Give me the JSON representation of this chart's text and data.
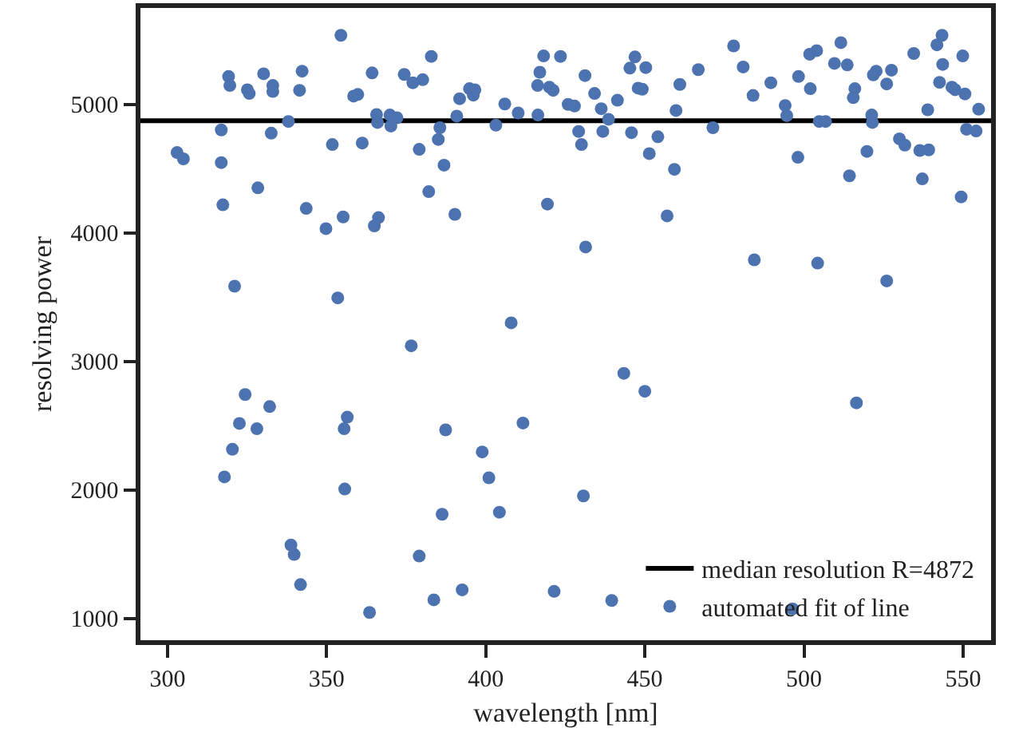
{
  "chart_data": {
    "type": "scatter",
    "xlabel": "wavelength [nm]",
    "ylabel": "resolving power",
    "x": [
      354.5,
      319.2,
      319.6,
      330.2,
      325.1,
      325.7,
      333.1,
      333.1,
      342.3,
      341.5,
      364.3,
      358.5,
      359.8,
      374.4,
      377.1,
      365.7,
      366,
      369.9,
      372.1,
      370.2,
      338,
      316.9,
      332.6,
      303,
      305,
      316.9,
      351.8,
      361.2,
      379.1,
      328.4,
      317.4,
      343.6,
      355.2,
      349.8,
      366.3,
      365,
      321.1,
      353.5,
      382.9,
      380.2,
      394.9,
      396.1,
      396.6,
      391.8,
      390.9,
      385.6,
      385.1,
      386.9,
      382.1,
      390.3,
      403.2,
      406,
      410.2,
      418.2,
      417,
      416.3,
      420,
      421.2,
      416.4,
      423.5,
      431.2,
      425.9,
      427.9,
      434.2,
      436.3,
      438.6,
      441.4,
      429.2,
      430.1,
      436.8,
      446.9,
      445.3,
      450.3,
      447.9,
      449.2,
      445.8,
      454.1,
      451.4,
      459.3,
      461,
      459.8,
      466.8,
      419.4,
      457,
      431.4,
      408,
      477.9,
      480.9,
      484,
      489.6,
      494.1,
      494.6,
      498.3,
      502,
      501.8,
      504,
      509.6,
      513.6,
      511.6,
      504.8,
      506.8,
      516,
      515.5,
      521.3,
      521.5,
      522.7,
      521.8,
      527.5,
      526,
      534.5,
      541.8,
      543.4,
      543.6,
      542.6,
      546.5,
      547.5,
      550.6,
      549.9,
      538.9,
      554.9,
      551.1,
      554.1,
      471.4,
      498.1,
      514.3,
      519.8,
      530,
      531.7,
      536.4,
      539.2,
      537.2,
      549.4,
      484.4,
      504.3,
      526,
      376.6,
      324.4,
      332.1,
      322.6,
      328.1,
      356.5,
      355.5,
      320.4,
      317.9,
      355.7,
      338.8,
      339.8,
      341.8,
      363.5,
      379.1,
      443.4,
      450,
      387.4,
      411.7,
      398.9,
      401,
      430.7,
      386.3,
      404.3,
      383.7,
      392.6,
      421.5,
      439.6,
      516.5,
      496.4
    ],
    "series": [
      {
        "name": "automated fit of line",
        "color": "#4c72b0",
        "values": [
          5537,
          5217,
          5147,
          5238,
          5114,
          5085,
          5147,
          5101,
          5258,
          5109,
          5245,
          5064,
          5077,
          5233,
          5168,
          4921,
          4859,
          4917,
          4896,
          4831,
          4867,
          4801,
          4776,
          4625,
          4576,
          4547,
          4687,
          4699,
          4650,
          4350,
          4218,
          4190,
          4124,
          4033,
          4119,
          4054,
          3585,
          3494,
          5373,
          5192,
          5122,
          5072,
          5114,
          5044,
          4909,
          4818,
          4727,
          4527,
          4321,
          4144,
          4838,
          5003,
          4933,
          5377,
          5250,
          5147,
          5134,
          5109,
          4917,
          5373,
          5224,
          5000,
          4987,
          5085,
          4966,
          4884,
          5032,
          4789,
          4687,
          4789,
          5369,
          5282,
          5286,
          5126,
          5118,
          4780,
          4748,
          4617,
          4494,
          5155,
          4952,
          5270,
          4224,
          4132,
          3890,
          3300,
          5455,
          5291,
          5069,
          5168,
          4991,
          4912,
          5217,
          5122,
          5390,
          5418,
          5319,
          5307,
          5480,
          4867,
          4867,
          5122,
          5052,
          4917,
          4859,
          5258,
          5229,
          5266,
          5159,
          5396,
          5463,
          5537,
          5311,
          5171,
          5134,
          5114,
          5081,
          5377,
          4958,
          4962,
          4806,
          4793,
          4818,
          4588,
          4444,
          4634,
          4732,
          4683,
          4641,
          4646,
          4420,
          4280,
          3790,
          3765,
          3626,
          3121,
          2742,
          2648,
          2517,
          2476,
          2566,
          2476,
          2316,
          2101,
          2007,
          1571,
          1497,
          1263,
          1046,
          1485,
          2907,
          2767,
          2467,
          2520,
          2295,
          2094,
          1953,
          1810,
          1826,
          1144,
          1222,
          1210,
          1139,
          2677,
          1074
        ]
      }
    ],
    "ref_lines": [
      {
        "axis": "y",
        "value": 4872,
        "label": "median resolution R=4872",
        "color": "#000000",
        "line_style": "solid"
      }
    ],
    "xlim": [
      291.5,
      558.8
    ],
    "ylim": [
      830,
      5750
    ],
    "xticks": [
      300,
      350,
      400,
      450,
      500,
      550
    ],
    "yticks": [
      1000,
      2000,
      3000,
      4000,
      5000
    ],
    "marker": "circle",
    "grid": false,
    "legend": "bottom right"
  }
}
